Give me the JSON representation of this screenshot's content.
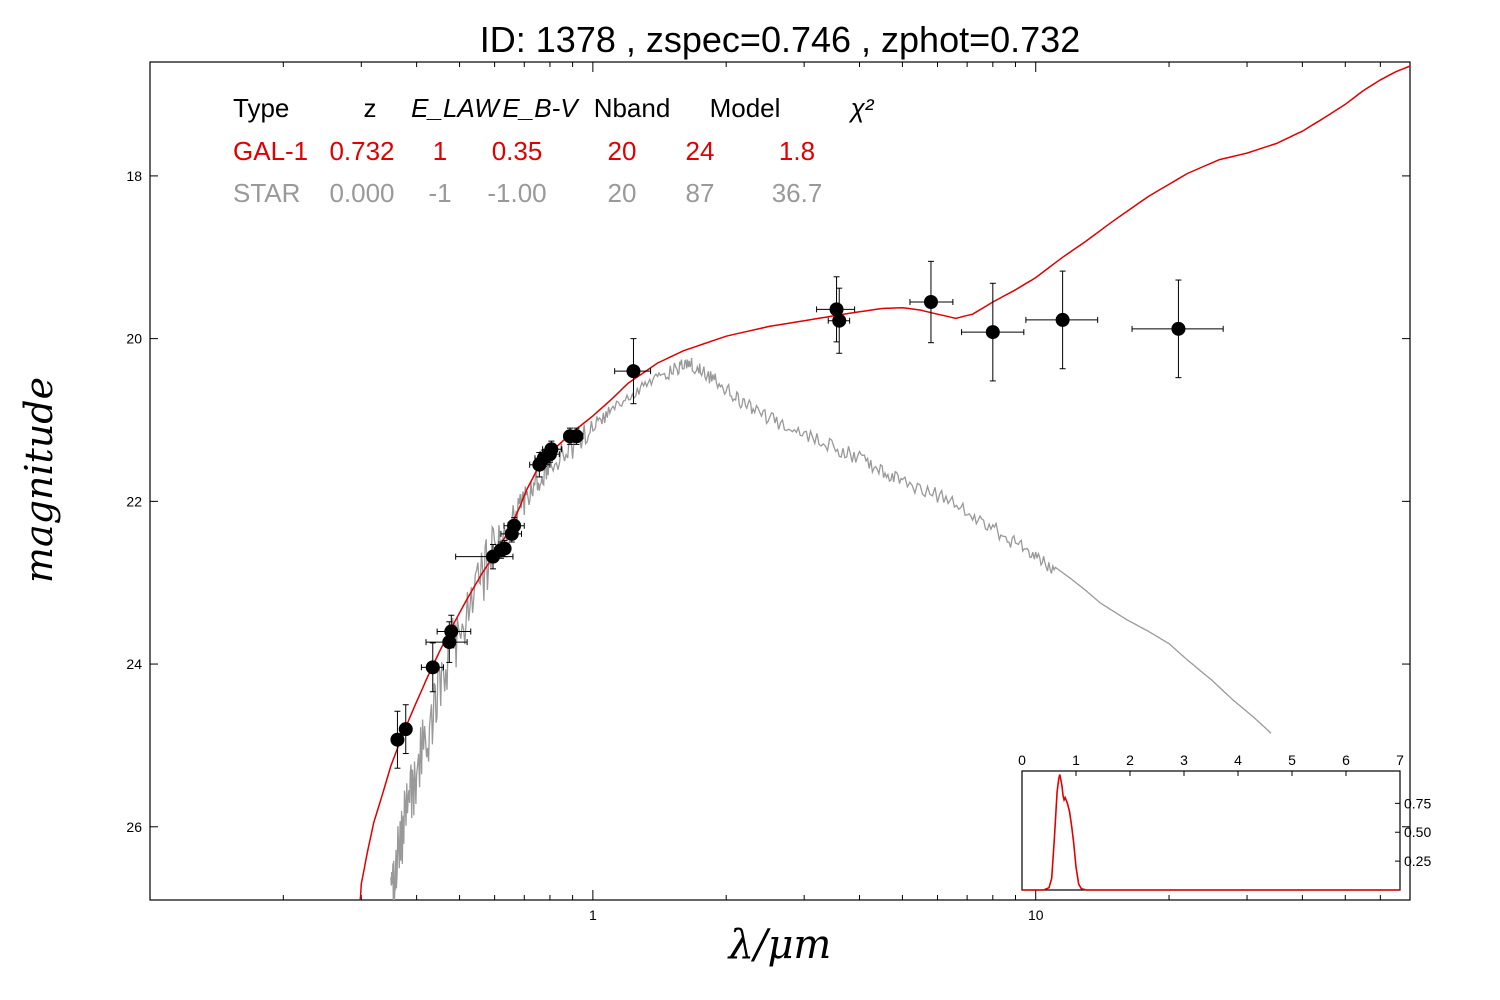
{
  "chart_data": {
    "type": "scatter",
    "title": "ID:  1378  , zspec=0.746 , zphot=0.732",
    "xlabel": "λ/μm",
    "ylabel": "magnitude",
    "x_scale": "log",
    "x_range": [
      0.1,
      70
    ],
    "y_range": [
      26.9,
      16.6
    ],
    "y_inverted": true,
    "x_ticks": [
      {
        "value": 1,
        "label": "1"
      },
      {
        "value": 10,
        "label": "10"
      }
    ],
    "y_ticks": [
      {
        "value": 18,
        "label": "18"
      },
      {
        "value": 20,
        "label": "20"
      },
      {
        "value": 22,
        "label": "22"
      },
      {
        "value": 24,
        "label": "24"
      },
      {
        "value": 26,
        "label": "26"
      }
    ],
    "info_table": {
      "headers": [
        "Type",
        "z",
        "E_LAW",
        "E_B-V",
        "Nband",
        "Model",
        "χ²"
      ],
      "rows": [
        {
          "color": "#e00000",
          "cells": [
            "GAL-1",
            "0.732",
            "1",
            "0.35",
            "20",
            "24",
            "1.8"
          ]
        },
        {
          "color": "#999999",
          "cells": [
            "STAR",
            "0.000",
            "-1",
            "-1.00",
            "20",
            "87",
            "36.7"
          ]
        }
      ]
    },
    "photometry": [
      {
        "x": 0.362,
        "y": 24.93,
        "xerr": [
          0.355,
          0.37
        ],
        "yerr": 0.35
      },
      {
        "x": 0.378,
        "y": 24.8,
        "xerr": [
          0.37,
          0.386
        ],
        "yerr": 0.3
      },
      {
        "x": 0.435,
        "y": 24.04,
        "xerr": [
          0.41,
          0.46
        ],
        "yerr": 0.3
      },
      {
        "x": 0.474,
        "y": 23.73,
        "xerr": [
          0.42,
          0.52
        ],
        "yerr": 0.25
      },
      {
        "x": 0.479,
        "y": 23.6,
        "xerr": [
          0.445,
          0.53
        ],
        "yerr": 0.2
      },
      {
        "x": 0.595,
        "y": 22.68,
        "xerr": [
          0.49,
          0.66
        ],
        "yerr": 0.15
      },
      {
        "x": 0.62,
        "y": 22.6,
        "xerr": [
          0.6,
          0.64
        ],
        "yerr": 0.1
      },
      {
        "x": 0.632,
        "y": 22.58,
        "xerr": [
          0.61,
          0.65
        ],
        "yerr": 0.1
      },
      {
        "x": 0.656,
        "y": 22.4,
        "xerr": [
          0.62,
          0.69
        ],
        "yerr": 0.1
      },
      {
        "x": 0.664,
        "y": 22.3,
        "xerr": [
          0.63,
          0.7
        ],
        "yerr": 0.1
      },
      {
        "x": 0.757,
        "y": 21.55,
        "xerr": [
          0.72,
          0.8
        ],
        "yerr": 0.15
      },
      {
        "x": 0.775,
        "y": 21.47,
        "xerr": [
          0.74,
          0.81
        ],
        "yerr": 0.1
      },
      {
        "x": 0.8,
        "y": 21.42,
        "xerr": [
          0.76,
          0.84
        ],
        "yerr": 0.1
      },
      {
        "x": 0.806,
        "y": 21.36,
        "xerr": [
          0.77,
          0.85
        ],
        "yerr": 0.1
      },
      {
        "x": 0.888,
        "y": 21.2,
        "xerr": [
          0.86,
          0.92
        ],
        "yerr": 0.1
      },
      {
        "x": 0.918,
        "y": 21.2,
        "xerr": [
          0.89,
          0.95
        ],
        "yerr": 0.1
      },
      {
        "x": 1.235,
        "y": 20.4,
        "xerr": [
          1.12,
          1.35
        ],
        "yerr": 0.4
      },
      {
        "x": 3.55,
        "y": 19.64,
        "xerr": [
          3.2,
          3.9
        ],
        "yerr": 0.4
      },
      {
        "x": 3.6,
        "y": 19.78,
        "xerr": [
          3.4,
          3.8
        ],
        "yerr": 0.4
      },
      {
        "x": 5.8,
        "y": 19.55,
        "xerr": [
          5.2,
          6.5
        ],
        "yerr": 0.5
      },
      {
        "x": 8.0,
        "y": 19.92,
        "xerr": [
          6.8,
          9.4
        ],
        "yerr": 0.6
      },
      {
        "x": 11.5,
        "y": 19.77,
        "xerr": [
          9.5,
          13.8
        ],
        "yerr": 0.6
      },
      {
        "x": 21.0,
        "y": 19.88,
        "xerr": [
          16.5,
          26.5
        ],
        "yerr": 0.6
      }
    ],
    "series": [
      {
        "role": "galaxy-model",
        "color": "#e00000",
        "points": [
          [
            0.298,
            26.95
          ],
          [
            0.3,
            26.7
          ],
          [
            0.31,
            26.3
          ],
          [
            0.32,
            25.95
          ],
          [
            0.335,
            25.6
          ],
          [
            0.35,
            25.25
          ],
          [
            0.37,
            24.9
          ],
          [
            0.39,
            24.6
          ],
          [
            0.42,
            24.2
          ],
          [
            0.45,
            23.85
          ],
          [
            0.48,
            23.55
          ],
          [
            0.52,
            23.2
          ],
          [
            0.56,
            22.9
          ],
          [
            0.6,
            22.65
          ],
          [
            0.64,
            22.4
          ],
          [
            0.68,
            22.1
          ],
          [
            0.71,
            21.85
          ],
          [
            0.75,
            21.6
          ],
          [
            0.8,
            21.4
          ],
          [
            0.9,
            21.15
          ],
          [
            1.0,
            20.95
          ],
          [
            1.1,
            20.75
          ],
          [
            1.2,
            20.55
          ],
          [
            1.4,
            20.3
          ],
          [
            1.6,
            20.15
          ],
          [
            2.0,
            19.97
          ],
          [
            2.5,
            19.85
          ],
          [
            3.0,
            19.78
          ],
          [
            3.5,
            19.72
          ],
          [
            4.0,
            19.67
          ],
          [
            4.5,
            19.63
          ],
          [
            5.0,
            19.62
          ],
          [
            5.5,
            19.65
          ],
          [
            6.0,
            19.7
          ],
          [
            6.6,
            19.75
          ],
          [
            7.2,
            19.7
          ],
          [
            8.0,
            19.55
          ],
          [
            9.0,
            19.4
          ],
          [
            10.0,
            19.25
          ],
          [
            11.5,
            19.0
          ],
          [
            13.0,
            18.8
          ],
          [
            15.0,
            18.55
          ],
          [
            18.0,
            18.25
          ],
          [
            22.0,
            17.97
          ],
          [
            26.0,
            17.8
          ],
          [
            30.0,
            17.72
          ],
          [
            35.0,
            17.6
          ],
          [
            40.0,
            17.45
          ],
          [
            45.0,
            17.28
          ],
          [
            50.0,
            17.12
          ],
          [
            55.0,
            16.95
          ],
          [
            60.0,
            16.82
          ],
          [
            65.0,
            16.72
          ],
          [
            70.0,
            16.65
          ]
        ]
      },
      {
        "role": "star-model",
        "color": "#999999",
        "points": [
          [
            0.35,
            26.9
          ],
          [
            0.36,
            26.3
          ],
          [
            0.38,
            25.7
          ],
          [
            0.4,
            25.2
          ],
          [
            0.43,
            24.6
          ],
          [
            0.46,
            24.0
          ],
          [
            0.5,
            23.4
          ],
          [
            0.55,
            22.9
          ],
          [
            0.6,
            22.5
          ],
          [
            0.65,
            22.2
          ],
          [
            0.7,
            21.95
          ],
          [
            0.75,
            21.7
          ],
          [
            0.8,
            21.5
          ],
          [
            0.9,
            21.25
          ],
          [
            1.0,
            21.05
          ],
          [
            1.1,
            20.85
          ],
          [
            1.25,
            20.6
          ],
          [
            1.4,
            20.45
          ],
          [
            1.55,
            20.33
          ],
          [
            1.65,
            20.28
          ],
          [
            1.75,
            20.35
          ],
          [
            1.9,
            20.5
          ],
          [
            2.1,
            20.7
          ],
          [
            2.3,
            20.85
          ],
          [
            2.6,
            21.0
          ],
          [
            3.0,
            21.15
          ],
          [
            3.5,
            21.3
          ],
          [
            4.0,
            21.45
          ],
          [
            4.5,
            21.6
          ],
          [
            5.0,
            21.72
          ],
          [
            6.0,
            21.9
          ],
          [
            7.0,
            22.1
          ],
          [
            8.0,
            22.3
          ],
          [
            9.0,
            22.5
          ],
          [
            10.0,
            22.65
          ],
          [
            11.0,
            22.8
          ],
          [
            12.0,
            22.95
          ],
          [
            13.0,
            23.1
          ],
          [
            14.0,
            23.25
          ],
          [
            16.0,
            23.45
          ],
          [
            18.0,
            23.6
          ],
          [
            20.0,
            23.75
          ],
          [
            22.0,
            23.95
          ],
          [
            25.0,
            24.2
          ],
          [
            28.0,
            24.45
          ],
          [
            31.0,
            24.65
          ],
          [
            34.0,
            24.85
          ]
        ]
      }
    ],
    "inset": {
      "type": "line",
      "x_range": [
        0,
        7
      ],
      "y_range": [
        0,
        1.03
      ],
      "x_ticks": [
        "0",
        "1",
        "2",
        "3",
        "4",
        "5",
        "6",
        "7"
      ],
      "y_ticks": [
        {
          "value": 0.25,
          "label": "0.25"
        },
        {
          "value": 0.5,
          "label": "0.50"
        },
        {
          "value": 0.75,
          "label": "0.75"
        }
      ],
      "color": "#e00000",
      "x": [
        0.0,
        0.4,
        0.5,
        0.55,
        0.6,
        0.65,
        0.68,
        0.7,
        0.72,
        0.74,
        0.76,
        0.78,
        0.8,
        0.84,
        0.88,
        0.92,
        0.96,
        1.0,
        1.05,
        1.1,
        1.2,
        1.4,
        7.0
      ],
      "y": [
        0.0,
        0.0,
        0.02,
        0.1,
        0.45,
        0.85,
        0.96,
        1.0,
        0.95,
        0.9,
        0.82,
        0.78,
        0.8,
        0.75,
        0.68,
        0.55,
        0.4,
        0.2,
        0.05,
        0.01,
        0.0,
        0.0,
        0.0
      ]
    }
  }
}
